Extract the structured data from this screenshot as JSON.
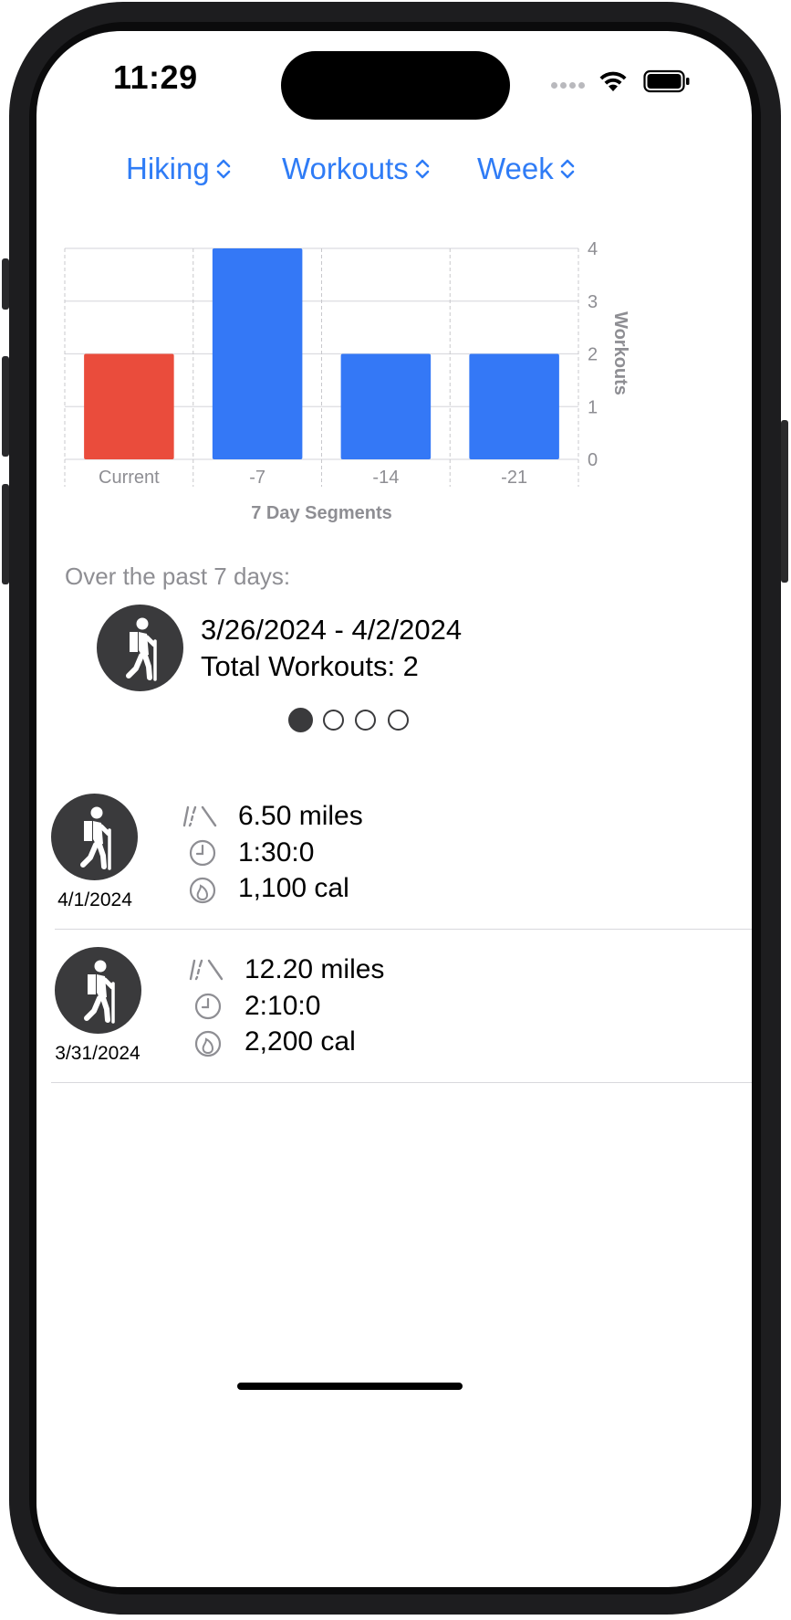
{
  "status_bar": {
    "time": "11:29"
  },
  "pickers": [
    {
      "label": "Hiking"
    },
    {
      "label": "Workouts"
    },
    {
      "label": "Week"
    }
  ],
  "chart_data": {
    "type": "bar",
    "categories": [
      "Current",
      "-7",
      "-14",
      "-21"
    ],
    "values": [
      2,
      4,
      2,
      2
    ],
    "xlabel": "7 Day Segments",
    "ylabel": "Workouts",
    "ylim": [
      0,
      4
    ],
    "yticks": [
      "0",
      "1",
      "2",
      "3",
      "4"
    ],
    "bar_colors": [
      "#ea4c3c",
      "#3478f6",
      "#3478f6",
      "#3478f6"
    ],
    "grid": true
  },
  "summary": {
    "label": "Over the past 7 days:",
    "date_range": "3/26/2024 - 4/2/2024",
    "total": "Total Workouts: 2",
    "page_count": 4,
    "current_page": 1
  },
  "workouts": [
    {
      "date": "4/1/2024",
      "distance": "6.50 miles",
      "duration": "1:30:0",
      "calories": "1,100 cal"
    },
    {
      "date": "3/31/2024",
      "distance": "12.20 miles",
      "duration": "2:10:0",
      "calories": "2,200 cal"
    }
  ],
  "icons": {
    "activity": "hiker-icon",
    "distance": "road-icon",
    "duration": "clock-icon",
    "calories": "flame-icon"
  },
  "colors": {
    "accent": "#2f7cf6",
    "current_bar": "#ea4c3c",
    "past_bar": "#3478f6",
    "icon_circle": "#3a3a3c"
  }
}
